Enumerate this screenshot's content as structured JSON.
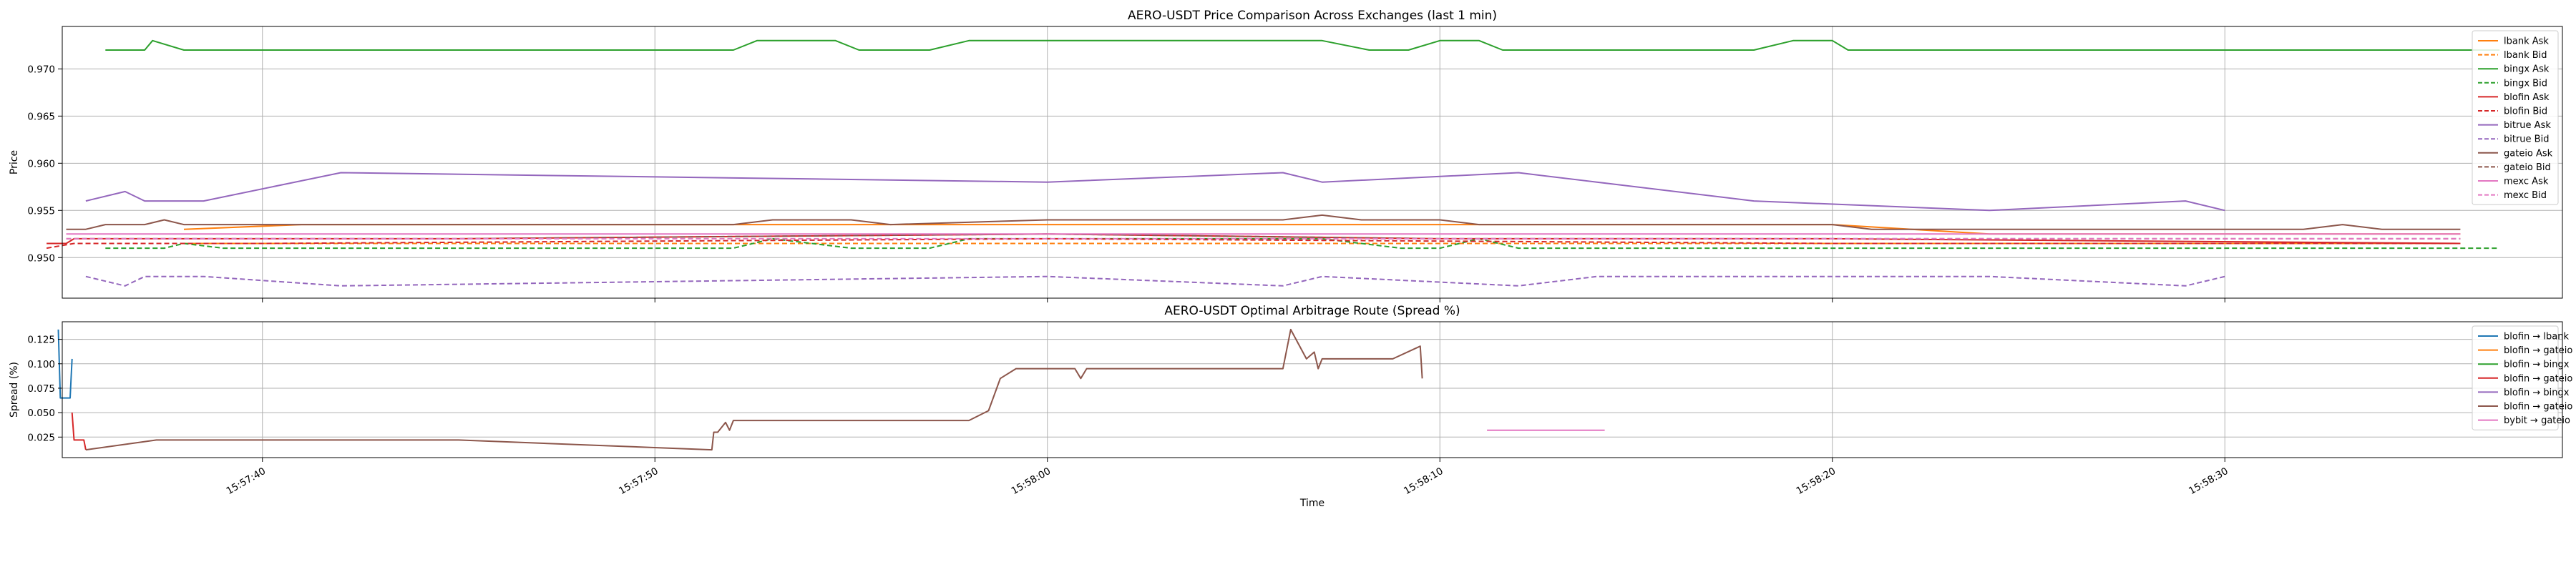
{
  "chart_data": [
    {
      "type": "line",
      "title": "AERO-USDT Price Comparison Across Exchanges (last 1 min)",
      "xlabel": "",
      "ylabel": "Price",
      "xlim": [
        "15:57:34.9",
        "15:58:38.6"
      ],
      "ylim": [
        0.9457,
        0.9745
      ],
      "y_ticks": [
        "0.950",
        "0.955",
        "0.960",
        "0.965",
        "0.970"
      ],
      "x_tick_values": [
        "15:57:40",
        "15:57:50",
        "15:58:00",
        "15:58:10",
        "15:58:20",
        "15:58:30"
      ],
      "grid": true,
      "legend_position": "upper-right",
      "series": [
        {
          "name": "lbank Ask",
          "color": "#ff7f0e",
          "dash": false,
          "points": [
            [
              "15:57:38.0",
              0.953
            ],
            [
              "15:57:41.0",
              0.9535
            ],
            [
              "15:58:00.0",
              0.9535
            ],
            [
              "15:58:20.0",
              0.9535
            ],
            [
              "15:58:24.0",
              0.9525
            ],
            [
              "15:58:36.0",
              0.9525
            ]
          ]
        },
        {
          "name": "lbank Bid",
          "color": "#ff7f0e",
          "dash": true,
          "points": [
            [
              "15:57:38.0",
              0.9515
            ],
            [
              "15:57:45.0",
              0.9515
            ],
            [
              "15:58:00.0",
              0.9515
            ],
            [
              "15:58:20.0",
              0.9515
            ],
            [
              "15:58:36.0",
              0.9515
            ]
          ]
        },
        {
          "name": "bingx Ask",
          "color": "#2ca02c",
          "dash": false,
          "points": [
            [
              "15:57:36.0",
              0.972
            ],
            [
              "15:57:37.0",
              0.972
            ],
            [
              "15:57:37.2",
              0.973
            ],
            [
              "15:57:38.0",
              0.972
            ],
            [
              "15:57:52.0",
              0.972
            ],
            [
              "15:57:52.6",
              0.973
            ],
            [
              "15:57:54.6",
              0.973
            ],
            [
              "15:57:55.2",
              0.972
            ],
            [
              "15:57:57.0",
              0.972
            ],
            [
              "15:57:58.0",
              0.973
            ],
            [
              "15:58:07.0",
              0.973
            ],
            [
              "15:58:08.2",
              0.972
            ],
            [
              "15:58:09.2",
              0.972
            ],
            [
              "15:58:10.0",
              0.973
            ],
            [
              "15:58:11.0",
              0.973
            ],
            [
              "15:58:11.6",
              0.972
            ],
            [
              "15:58:18.0",
              0.972
            ],
            [
              "15:58:19.0",
              0.973
            ],
            [
              "15:58:20.0",
              0.973
            ],
            [
              "15:58:20.4",
              0.972
            ],
            [
              "15:58:37.0",
              0.972
            ]
          ]
        },
        {
          "name": "bingx Bid",
          "color": "#2ca02c",
          "dash": true,
          "points": [
            [
              "15:57:36.0",
              0.951
            ],
            [
              "15:57:37.5",
              0.951
            ],
            [
              "15:57:38.0",
              0.9515
            ],
            [
              "15:57:39.0",
              0.951
            ],
            [
              "15:57:52.0",
              0.951
            ],
            [
              "15:57:53.0",
              0.952
            ],
            [
              "15:57:55.0",
              0.951
            ],
            [
              "15:57:57.0",
              0.951
            ],
            [
              "15:57:58.0",
              0.952
            ],
            [
              "15:58:07.0",
              0.952
            ],
            [
              "15:58:09.0",
              0.951
            ],
            [
              "15:58:10.0",
              0.951
            ],
            [
              "15:58:11.0",
              0.952
            ],
            [
              "15:58:12.0",
              0.951
            ],
            [
              "15:58:20.0",
              0.951
            ],
            [
              "15:58:21.0",
              0.951
            ],
            [
              "15:58:37.0",
              0.951
            ]
          ]
        },
        {
          "name": "blofin Ask",
          "color": "#d62728",
          "dash": false,
          "points": [
            [
              "15:57:34.5",
              0.9515
            ],
            [
              "15:57:35.0",
              0.9515
            ],
            [
              "15:57:35.2",
              0.952
            ],
            [
              "15:57:37.0",
              0.952
            ],
            [
              "15:57:45.0",
              0.952
            ],
            [
              "15:58:00.0",
              0.9525
            ],
            [
              "15:58:10.0",
              0.952
            ],
            [
              "15:58:20.0",
              0.952
            ],
            [
              "15:58:36.0",
              0.9515
            ]
          ]
        },
        {
          "name": "blofin Bid",
          "color": "#d62728",
          "dash": true,
          "points": [
            [
              "15:57:34.5",
              0.951
            ],
            [
              "15:57:35.2",
              0.9515
            ],
            [
              "15:57:40.0",
              0.9515
            ],
            [
              "15:58:00.0",
              0.952
            ],
            [
              "15:58:20.0",
              0.9515
            ],
            [
              "15:58:36.0",
              0.9515
            ]
          ]
        },
        {
          "name": "bitrue Ask",
          "color": "#9467bd",
          "dash": false,
          "points": [
            [
              "15:57:35.5",
              0.956
            ],
            [
              "15:57:36.5",
              0.957
            ],
            [
              "15:57:37.0",
              0.956
            ],
            [
              "15:57:38.5",
              0.956
            ],
            [
              "15:57:42.0",
              0.959
            ],
            [
              "15:58:00.0",
              0.958
            ],
            [
              "15:58:06.0",
              0.959
            ],
            [
              "15:58:07.0",
              0.958
            ],
            [
              "15:58:12.0",
              0.959
            ],
            [
              "15:58:14.0",
              0.958
            ],
            [
              "15:58:18.0",
              0.956
            ],
            [
              "15:58:24.0",
              0.955
            ],
            [
              "15:58:29.0",
              0.956
            ],
            [
              "15:58:30.0",
              0.955
            ]
          ]
        },
        {
          "name": "bitrue Bid",
          "color": "#9467bd",
          "dash": true,
          "points": [
            [
              "15:57:35.5",
              0.948
            ],
            [
              "15:57:36.5",
              0.947
            ],
            [
              "15:57:37.0",
              0.948
            ],
            [
              "15:57:38.5",
              0.948
            ],
            [
              "15:57:42.0",
              0.947
            ],
            [
              "15:58:00.0",
              0.948
            ],
            [
              "15:58:06.0",
              0.947
            ],
            [
              "15:58:07.0",
              0.948
            ],
            [
              "15:58:12.0",
              0.947
            ],
            [
              "15:58:14.0",
              0.948
            ],
            [
              "15:58:24.0",
              0.948
            ],
            [
              "15:58:29.0",
              0.947
            ],
            [
              "15:58:30.0",
              0.948
            ]
          ]
        },
        {
          "name": "gateio Ask",
          "color": "#8c564b",
          "dash": false,
          "points": [
            [
              "15:57:35.0",
              0.953
            ],
            [
              "15:57:35.5",
              0.953
            ],
            [
              "15:57:36.0",
              0.9535
            ],
            [
              "15:57:37.0",
              0.9535
            ],
            [
              "15:57:37.5",
              0.954
            ],
            [
              "15:57:38.0",
              0.9535
            ],
            [
              "15:57:52.0",
              0.9535
            ],
            [
              "15:57:53.0",
              0.954
            ],
            [
              "15:57:55.0",
              0.954
            ],
            [
              "15:57:56.0",
              0.9535
            ],
            [
              "15:58:00.0",
              0.954
            ],
            [
              "15:58:06.0",
              0.954
            ],
            [
              "15:58:07.0",
              0.9545
            ],
            [
              "15:58:08.0",
              0.954
            ],
            [
              "15:58:10.0",
              0.954
            ],
            [
              "15:58:11.0",
              0.9535
            ],
            [
              "15:58:20.0",
              0.9535
            ],
            [
              "15:58:21.0",
              0.953
            ],
            [
              "15:58:32.0",
              0.953
            ],
            [
              "15:58:33.0",
              0.9535
            ],
            [
              "15:58:34.0",
              0.953
            ],
            [
              "15:58:36.0",
              0.953
            ]
          ]
        },
        {
          "name": "gateio Bid",
          "color": "#8c564b",
          "dash": true,
          "points": [
            [
              "15:57:35.0",
              0.952
            ],
            [
              "15:57:45.0",
              0.952
            ],
            [
              "15:58:00.0",
              0.9525
            ],
            [
              "15:58:10.0",
              0.952
            ],
            [
              "15:58:36.0",
              0.952
            ]
          ]
        },
        {
          "name": "mexc Ask",
          "color": "#e377c2",
          "dash": false,
          "points": [
            [
              "15:57:35.0",
              0.9525
            ],
            [
              "15:57:50.0",
              0.9525
            ],
            [
              "15:58:10.0",
              0.9525
            ],
            [
              "15:58:36.0",
              0.9525
            ]
          ]
        },
        {
          "name": "mexc Bid",
          "color": "#e377c2",
          "dash": true,
          "points": [
            [
              "15:57:35.0",
              0.952
            ],
            [
              "15:57:50.0",
              0.952
            ],
            [
              "15:58:10.0",
              0.952
            ],
            [
              "15:58:36.0",
              0.952
            ]
          ]
        }
      ]
    },
    {
      "type": "line",
      "title": "AERO-USDT Optimal Arbitrage Route (Spread %)",
      "xlabel": "Time",
      "ylabel": "Spread (%)",
      "xlim": [
        "15:57:34.9",
        "15:58:38.6"
      ],
      "ylim": [
        0.004,
        0.143
      ],
      "y_ticks": [
        "0.025",
        "0.050",
        "0.075",
        "0.100",
        "0.125"
      ],
      "x_tick_labels": [
        "15:57:40",
        "15:57:50",
        "15:58:00",
        "15:58:10",
        "15:58:20",
        "15:58:30"
      ],
      "grid": true,
      "legend_position": "upper-right",
      "series": [
        {
          "name": "blofin → lbank",
          "color": "#1f77b4",
          "points": [
            [
              "15:57:34.80",
              0.135
            ],
            [
              "15:57:34.85",
              0.065
            ],
            [
              "15:57:35.10",
              0.065
            ],
            [
              "15:57:35.15",
              0.105
            ]
          ]
        },
        {
          "name": "blofin → gateio",
          "color": "#ff7f0e",
          "points": []
        },
        {
          "name": "blofin → bingx",
          "color": "#2ca02c",
          "points": []
        },
        {
          "name": "blofin → gateio",
          "color": "#d62728",
          "points": [
            [
              "15:57:35.15",
              0.05
            ],
            [
              "15:57:35.20",
              0.022
            ],
            [
              "15:57:35.45",
              0.022
            ],
            [
              "15:57:35.50",
              0.012
            ]
          ]
        },
        {
          "name": "blofin → bingx",
          "color": "#9467bd",
          "points": []
        },
        {
          "name": "blofin → gateio",
          "color": "#8c564b",
          "points": [
            [
              "15:57:35.50",
              0.012
            ],
            [
              "15:57:37.30",
              0.022
            ],
            [
              "15:57:45.00",
              0.022
            ],
            [
              "15:57:51.45",
              0.012
            ],
            [
              "15:57:51.50",
              0.03
            ],
            [
              "15:57:51.60",
              0.03
            ],
            [
              "15:57:51.80",
              0.04
            ],
            [
              "15:57:51.90",
              0.032
            ],
            [
              "15:57:52.00",
              0.042
            ],
            [
              "15:57:58.00",
              0.042
            ],
            [
              "15:57:58.50",
              0.052
            ],
            [
              "15:57:58.80",
              0.085
            ],
            [
              "15:57:59.20",
              0.095
            ],
            [
              "15:58:00.30",
              0.095
            ],
            [
              "15:58:00.70",
              0.095
            ],
            [
              "15:58:00.85",
              0.085
            ],
            [
              "15:58:01.00",
              0.095
            ],
            [
              "15:58:05.80",
              0.095
            ],
            [
              "15:58:06.00",
              0.095
            ],
            [
              "15:58:06.20",
              0.135
            ],
            [
              "15:58:06.40",
              0.12
            ],
            [
              "15:58:06.60",
              0.105
            ],
            [
              "15:58:06.80",
              0.112
            ],
            [
              "15:58:06.90",
              0.095
            ],
            [
              "15:58:07.00",
              0.105
            ],
            [
              "15:58:08.00",
              0.105
            ],
            [
              "15:58:08.80",
              0.105
            ],
            [
              "15:58:09.50",
              0.118
            ],
            [
              "15:58:09.55",
              0.085
            ]
          ]
        },
        {
          "name": "bybit → gateio",
          "color": "#e377c2",
          "points": [
            [
              "15:58:11.20",
              0.032
            ],
            [
              "15:58:14.20",
              0.032
            ]
          ]
        }
      ]
    }
  ]
}
